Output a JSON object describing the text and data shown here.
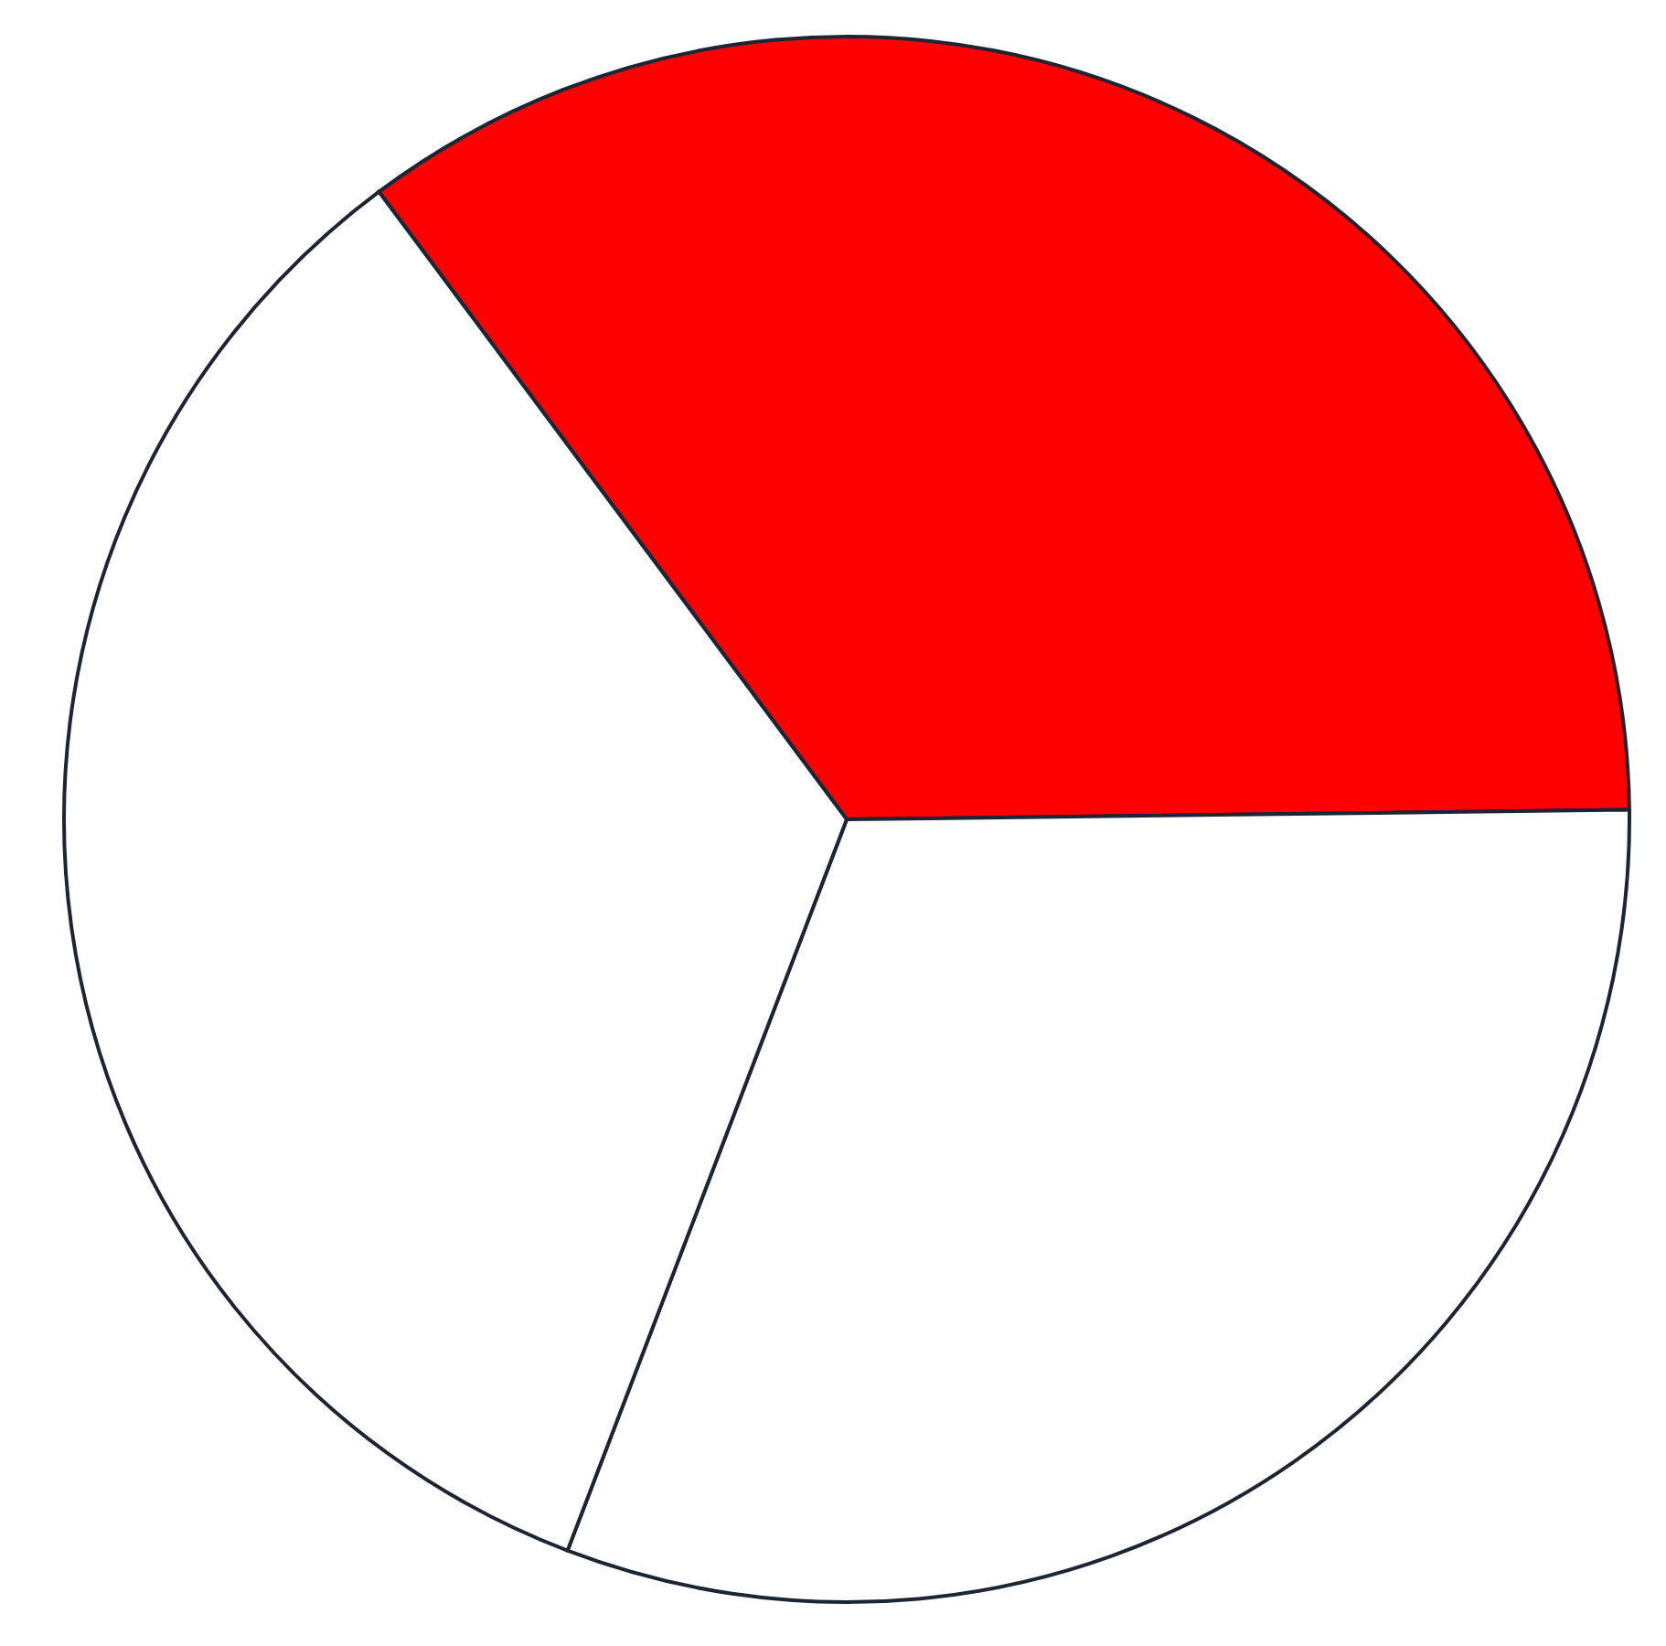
{
  "chart_data": {
    "type": "pie",
    "categories": [
      null,
      null,
      null
    ],
    "values": [
      35,
      31,
      34
    ],
    "colors": [
      "#ff0000",
      "#ffffff",
      "#ffffff"
    ]
  }
}
